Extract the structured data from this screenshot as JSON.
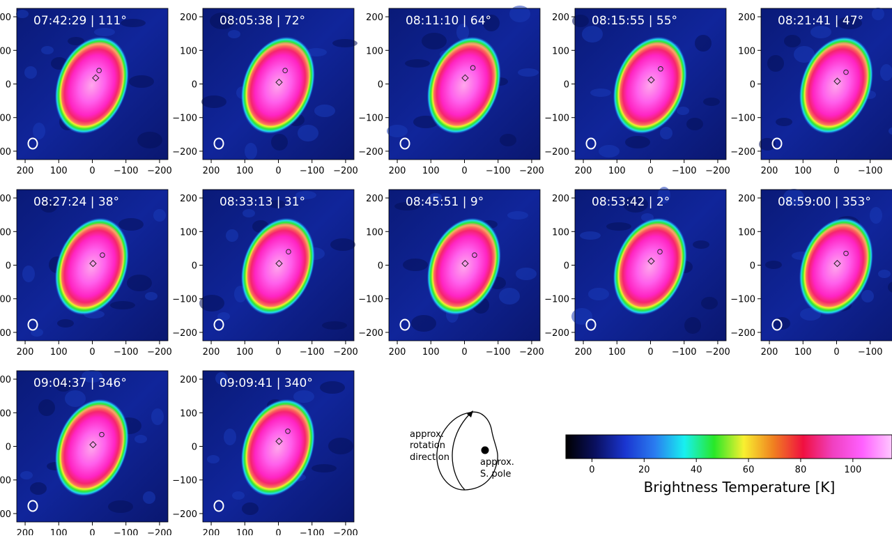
{
  "chart_data": {
    "type": "heatmap",
    "axes": {
      "x_ticks": [
        200,
        100,
        0,
        -100,
        -200
      ],
      "y_ticks": [
        200,
        100,
        0,
        -100,
        -200
      ],
      "xlim": [
        225,
        -225
      ],
      "ylim": [
        -225,
        225
      ]
    },
    "panels": [
      {
        "label": "07:42:29 | 111°",
        "circle": [
          -20,
          40
        ],
        "diamond": [
          -10,
          18
        ]
      },
      {
        "label": "08:05:38 | 72°",
        "circle": [
          -20,
          40
        ],
        "diamond": [
          -2,
          5
        ]
      },
      {
        "label": "08:11:10 | 64°",
        "circle": [
          -25,
          48
        ],
        "diamond": [
          -2,
          18
        ]
      },
      {
        "label": "08:15:55 | 55°",
        "circle": [
          -30,
          45
        ],
        "diamond": [
          -2,
          12
        ]
      },
      {
        "label": "08:21:41 | 47°",
        "circle": [
          -28,
          35
        ],
        "diamond": [
          -2,
          8
        ]
      },
      {
        "label": "08:27:24 | 38°",
        "circle": [
          -30,
          30
        ],
        "diamond": [
          -2,
          5
        ]
      },
      {
        "label": "08:33:13 | 31°",
        "circle": [
          -30,
          40
        ],
        "diamond": [
          -2,
          5
        ]
      },
      {
        "label": "08:45:51 | 9°",
        "circle": [
          -30,
          30
        ],
        "diamond": [
          -2,
          5
        ]
      },
      {
        "label": "08:53:42 | 2°",
        "circle": [
          -28,
          40
        ],
        "diamond": [
          -2,
          12
        ]
      },
      {
        "label": "08:59:00 | 353°",
        "circle": [
          -28,
          35
        ],
        "diamond": [
          -2,
          5
        ]
      },
      {
        "label": "09:04:37 | 346°",
        "circle": [
          -28,
          35
        ],
        "diamond": [
          -2,
          5
        ]
      },
      {
        "label": "09:09:41 | 340°",
        "circle": [
          -28,
          45
        ],
        "diamond": [
          -2,
          15
        ]
      }
    ],
    "colorbar": {
      "label": "Brightness Temperature [K]",
      "ticks": [
        0,
        20,
        40,
        60,
        80,
        100
      ],
      "range": [
        -10,
        115
      ],
      "colors": [
        "#000000",
        "#0a1060",
        "#1a35d0",
        "#2a7cf0",
        "#18f0f0",
        "#28e828",
        "#f8f030",
        "#f08020",
        "#f01040",
        "#f040c0",
        "#ff60ff",
        "#ffc8ff"
      ]
    }
  },
  "inset": {
    "rotation_lines": [
      "approx.",
      "rotation",
      "direction"
    ],
    "pole_lines": [
      "approx.",
      "S. pole"
    ]
  }
}
